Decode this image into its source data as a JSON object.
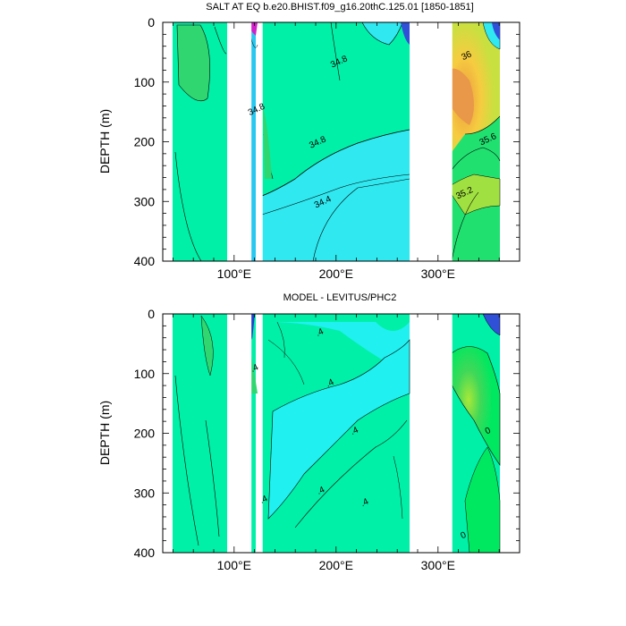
{
  "chart_data": [
    {
      "type": "heatmap",
      "title": "SALT AT EQ b.e20.BHIST.f09_g16.20thC.125.01 [1850-1851]",
      "ylabel": "DEPTH (m)",
      "xlabel": "",
      "x_tick_labels": [
        "100°E",
        "200°E",
        "300°E"
      ],
      "x_tick_values": [
        100,
        200,
        300
      ],
      "y_tick_labels": [
        "0",
        "100",
        "200",
        "300",
        "400"
      ],
      "y_tick_values": [
        0,
        100,
        200,
        300,
        400
      ],
      "xlim": [
        30,
        380
      ],
      "ylim": [
        0,
        400
      ],
      "y_reversed": true,
      "land_gaps_lon": [
        [
          97,
          117
        ],
        [
          124,
          128
        ],
        [
          280,
          314
        ]
      ],
      "contour_labels": [
        {
          "text": "34.8",
          "lon": 204,
          "depth": 70
        },
        {
          "text": "34.8",
          "lon": 123,
          "depth": 150
        },
        {
          "text": "34.8",
          "lon": 183,
          "depth": 205
        },
        {
          "text": "34.4",
          "lon": 188,
          "depth": 305
        },
        {
          "text": "36",
          "lon": 329,
          "depth": 60
        },
        {
          "text": "35.6",
          "lon": 350,
          "depth": 200
        },
        {
          "text": "35.2",
          "lon": 327,
          "depth": 290
        }
      ],
      "legend": "none",
      "grid": false
    },
    {
      "type": "heatmap",
      "title": "MODEL - LEVITUS/PHC2",
      "ylabel": "DEPTH (m)",
      "xlabel": "",
      "x_tick_labels": [
        "100°E",
        "200°E",
        "300°E"
      ],
      "x_tick_values": [
        100,
        200,
        300
      ],
      "y_tick_labels": [
        "0",
        "100",
        "200",
        "300",
        "400"
      ],
      "y_tick_values": [
        0,
        100,
        200,
        300,
        400
      ],
      "xlim": [
        30,
        380
      ],
      "ylim": [
        0,
        400
      ],
      "y_reversed": true,
      "land_gaps_lon": [
        [
          97,
          117
        ],
        [
          124,
          128
        ],
        [
          280,
          314
        ]
      ],
      "contour_labels": [
        {
          "text": ".4",
          "lon": 185,
          "depth": 35
        },
        {
          "text": ".4",
          "lon": 121,
          "depth": 95
        },
        {
          "text": ".4",
          "lon": 195,
          "depth": 120
        },
        {
          "text": ".4",
          "lon": 219,
          "depth": 200
        },
        {
          "text": ".4",
          "lon": 186,
          "depth": 300
        },
        {
          "text": ".4",
          "lon": 130,
          "depth": 315
        },
        {
          "text": ".4",
          "lon": 229,
          "depth": 320
        },
        {
          "text": "0",
          "lon": 350,
          "depth": 200
        },
        {
          "text": "0",
          "lon": 326,
          "depth": 375
        }
      ],
      "legend": "none",
      "grid": false
    }
  ]
}
